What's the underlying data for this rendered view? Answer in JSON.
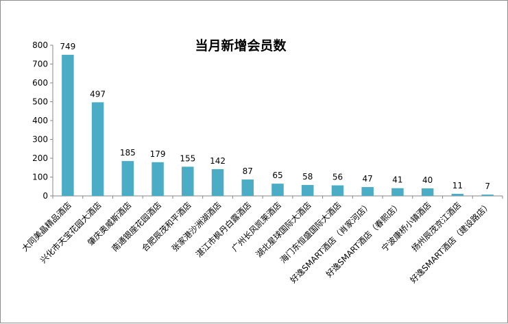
{
  "chart_data": {
    "type": "bar",
    "title": "当月新增会员数",
    "xlabel": "",
    "ylabel": "",
    "ylim": [
      0,
      800
    ],
    "yticks": [
      0,
      100,
      200,
      300,
      400,
      500,
      600,
      700,
      800
    ],
    "grid": false,
    "legend": "none",
    "bar_color": "#4bacc6",
    "data_labels": true,
    "categories": [
      "大同美晶精品酒店",
      "兴化市天宝花园大酒店",
      "肇庆奥威斯酒店",
      "南通银座花园酒店",
      "合肥辰茂和平酒店",
      "张家港沙洲湖酒店",
      "湛江市枫丹白露酒店",
      "广州长风凯莱酒店",
      "湖北星球国际大酒店",
      "海门东恒盛国际大酒店",
      "好逸SMART酒店（肖家河店）",
      "好逸SMART酒店（春熙店）",
      "宁波康桥小镇酒店",
      "扬州辰茂京江酒店",
      "好逸SMART酒店（建设路店）"
    ],
    "values": [
      749,
      497,
      185,
      179,
      155,
      142,
      87,
      65,
      58,
      56,
      47,
      41,
      40,
      11,
      7
    ]
  }
}
